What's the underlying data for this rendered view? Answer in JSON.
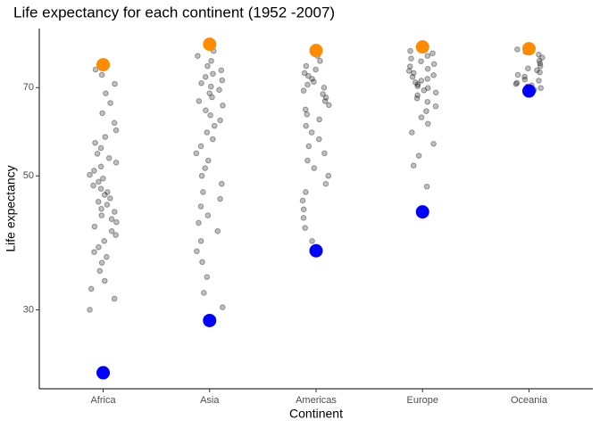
{
  "chart_data": {
    "type": "jitter",
    "title": "Life expectancy for each continent (1952 -2007)",
    "xlabel": "Continent",
    "ylabel": "Life expectancy",
    "categories": [
      "Africa",
      "Asia",
      "Americas",
      "Europe",
      "Oceania"
    ],
    "log_scale": true,
    "ylim": [
      22.2,
      87.7
    ],
    "yticks": [
      30,
      50,
      70
    ],
    "points": {
      "color": "#000000",
      "values": [
        [
          30.0,
          31.3,
          32.5,
          33.5,
          34.8,
          35.9,
          36.7,
          37.4,
          38.1,
          39.0,
          39.9,
          40.5,
          41.2,
          41.9,
          42.4,
          43.0,
          43.6,
          44.1,
          44.8,
          45.3,
          45.9,
          46.5,
          47.0,
          47.6,
          48.2,
          48.9,
          49.5,
          50.2,
          51.0,
          51.8,
          52.6,
          53.5,
          54.4,
          55.6,
          56.7,
          58.0,
          59.5,
          61.2,
          63.5,
          66.0,
          68.5,
          71.0,
          73.5,
          75.0
        ],
        [
          30.3,
          32.0,
          34.0,
          36.0,
          37.5,
          39.0,
          40.5,
          41.8,
          43.0,
          44.5,
          45.8,
          47.0,
          48.5,
          50.0,
          51.5,
          53.0,
          54.5,
          56.0,
          57.5,
          59.0,
          60.5,
          61.8,
          63.0,
          64.2,
          65.4,
          66.5,
          67.5,
          68.5,
          69.4,
          70.3,
          71.2,
          72.0,
          72.9,
          73.8,
          74.8,
          76.0,
          77.5,
          79.0,
          80.5
        ],
        [
          39.0,
          41.0,
          42.6,
          44.0,
          45.5,
          47.0,
          48.5,
          50.0,
          51.5,
          53.0,
          54.5,
          56.0,
          57.5,
          59.0,
          60.5,
          62.0,
          63.2,
          64.4,
          65.5,
          66.5,
          67.4,
          68.3,
          69.2,
          70.0,
          70.8,
          71.6,
          72.4,
          73.2,
          74.0,
          75.0,
          76.0,
          77.5,
          79.0
        ],
        [
          48.0,
          52.0,
          54.0,
          56.5,
          59.0,
          61.0,
          62.5,
          64.0,
          65.2,
          66.3,
          67.2,
          68.0,
          68.7,
          69.3,
          69.9,
          70.4,
          70.9,
          71.4,
          71.9,
          72.4,
          72.9,
          73.4,
          74.0,
          74.6,
          75.2,
          75.9,
          76.6,
          77.4,
          78.2,
          79.0,
          79.8,
          80.5
        ],
        [
          69.4,
          69.9,
          70.3,
          70.6,
          71.0,
          71.3,
          71.9,
          72.2,
          73.0,
          73.5,
          74.2,
          74.8,
          75.3,
          76.0,
          76.8,
          77.6,
          78.5,
          79.4,
          80.2,
          81.0
        ]
      ]
    },
    "series": [
      {
        "color": "#ff8c00",
        "values": [
          76.4,
          82.6,
          80.65,
          81.76,
          81.2
        ]
      },
      {
        "color": "#0000ff",
        "values": [
          23.6,
          28.8,
          37.58,
          43.59,
          69.12
        ]
      }
    ]
  }
}
